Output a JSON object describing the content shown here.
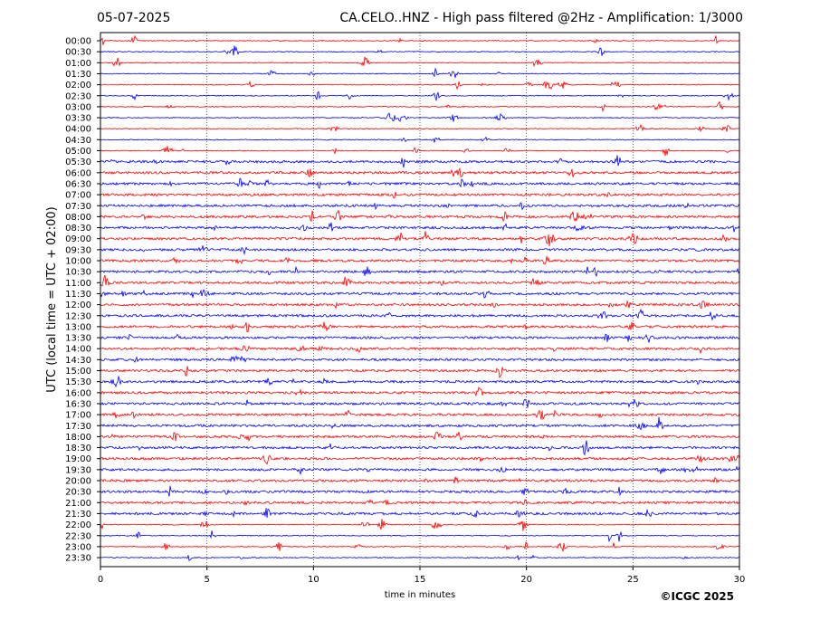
{
  "header": {
    "date": "05-07-2025",
    "title": "CA.CELO..HNZ - High pass filtered @2Hz - Amplification: 1/3000"
  },
  "copyright": "©ICGC 2025",
  "chart_data": {
    "type": "line",
    "xlabel": "time in minutes",
    "ylabel": "UTC (local time = UTC + 02:00)",
    "xlim": [
      0,
      30
    ],
    "xticks": [
      "0",
      "5",
      "10",
      "15",
      "20",
      "25",
      "30"
    ],
    "grid": "vertical dotted lines at 5-minute ticks",
    "colors": {
      "odd": "#ff0000",
      "even": "#0000ff"
    },
    "rows": [
      "00:00",
      "00:30",
      "01:00",
      "01:30",
      "02:00",
      "02:30",
      "03:00",
      "03:30",
      "04:00",
      "04:30",
      "05:00",
      "05:30",
      "06:00",
      "06:30",
      "07:00",
      "07:30",
      "08:00",
      "08:30",
      "09:00",
      "09:30",
      "10:00",
      "10:30",
      "11:00",
      "11:30",
      "12:00",
      "12:30",
      "13:00",
      "13:30",
      "14:00",
      "14:30",
      "15:00",
      "15:30",
      "16:00",
      "16:30",
      "17:00",
      "17:30",
      "18:00",
      "18:30",
      "19:00",
      "19:30",
      "20:00",
      "20:30",
      "21:00",
      "21:30",
      "22:00",
      "22:30",
      "23:00",
      "23:30"
    ]
  }
}
